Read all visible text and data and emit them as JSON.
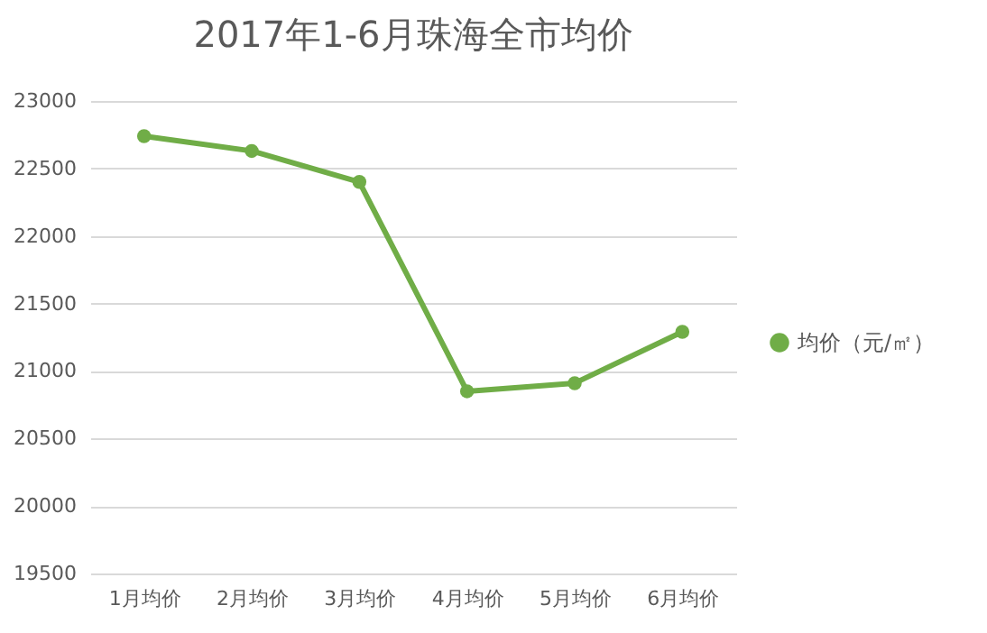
{
  "chart_data": {
    "type": "line",
    "title": "2017年1-6月珠海全市均价",
    "categories": [
      "1月均价",
      "2月均价",
      "3月均价",
      "4月均价",
      "5月均价",
      "6月均价"
    ],
    "series": [
      {
        "name": "均价（元/㎡）",
        "color": "#70ad47",
        "values": [
          22740,
          22630,
          22400,
          20850,
          20910,
          21290
        ]
      }
    ],
    "ylim": [
      19500,
      23000
    ],
    "yticks": [
      19500,
      20000,
      20500,
      21000,
      21500,
      22000,
      22500,
      23000
    ],
    "grid": "y",
    "legend": "right",
    "marker": "circle",
    "line_style": "solid"
  }
}
